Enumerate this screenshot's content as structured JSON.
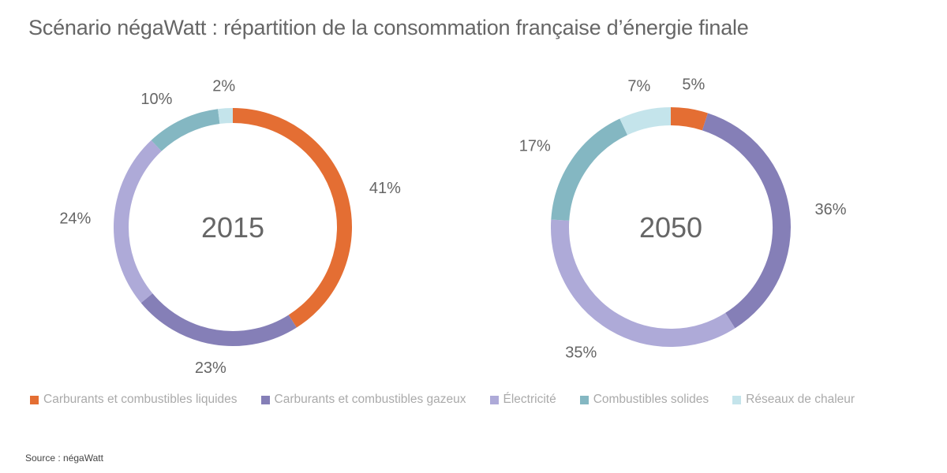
{
  "title": "Scénario négaWatt : répartition de la consommation française d’énergie finale",
  "source": "Source : négaWatt",
  "legend": [
    {
      "label": "Carburants et combustibles liquides",
      "color": "#e46e33"
    },
    {
      "label": "Carburants et combustibles gazeux",
      "color": "#857fb7"
    },
    {
      "label": "Électricité",
      "color": "#aeaad8"
    },
    {
      "label": "Combustibles solides",
      "color": "#84b7c2"
    },
    {
      "label": "Réseaux de chaleur",
      "color": "#c4e4eb"
    }
  ],
  "chart_data": [
    {
      "type": "pie",
      "variant": "donut",
      "title": "2015",
      "categories": [
        "Carburants et combustibles liquides",
        "Carburants et combustibles gazeux",
        "Électricité",
        "Combustibles solides",
        "Réseaux de chaleur"
      ],
      "values": [
        41,
        23,
        24,
        10,
        2
      ],
      "labels": [
        "41%",
        "23%",
        "24%",
        "10%",
        "2%"
      ],
      "unit": "%"
    },
    {
      "type": "pie",
      "variant": "donut",
      "title": "2050",
      "categories": [
        "Carburants et combustibles liquides",
        "Carburants et combustibles gazeux",
        "Électricité",
        "Combustibles solides",
        "Réseaux de chaleur"
      ],
      "values": [
        5,
        36,
        35,
        17,
        7
      ],
      "labels": [
        "5%",
        "36%",
        "35%",
        "17%",
        "7%"
      ],
      "unit": "%"
    }
  ]
}
